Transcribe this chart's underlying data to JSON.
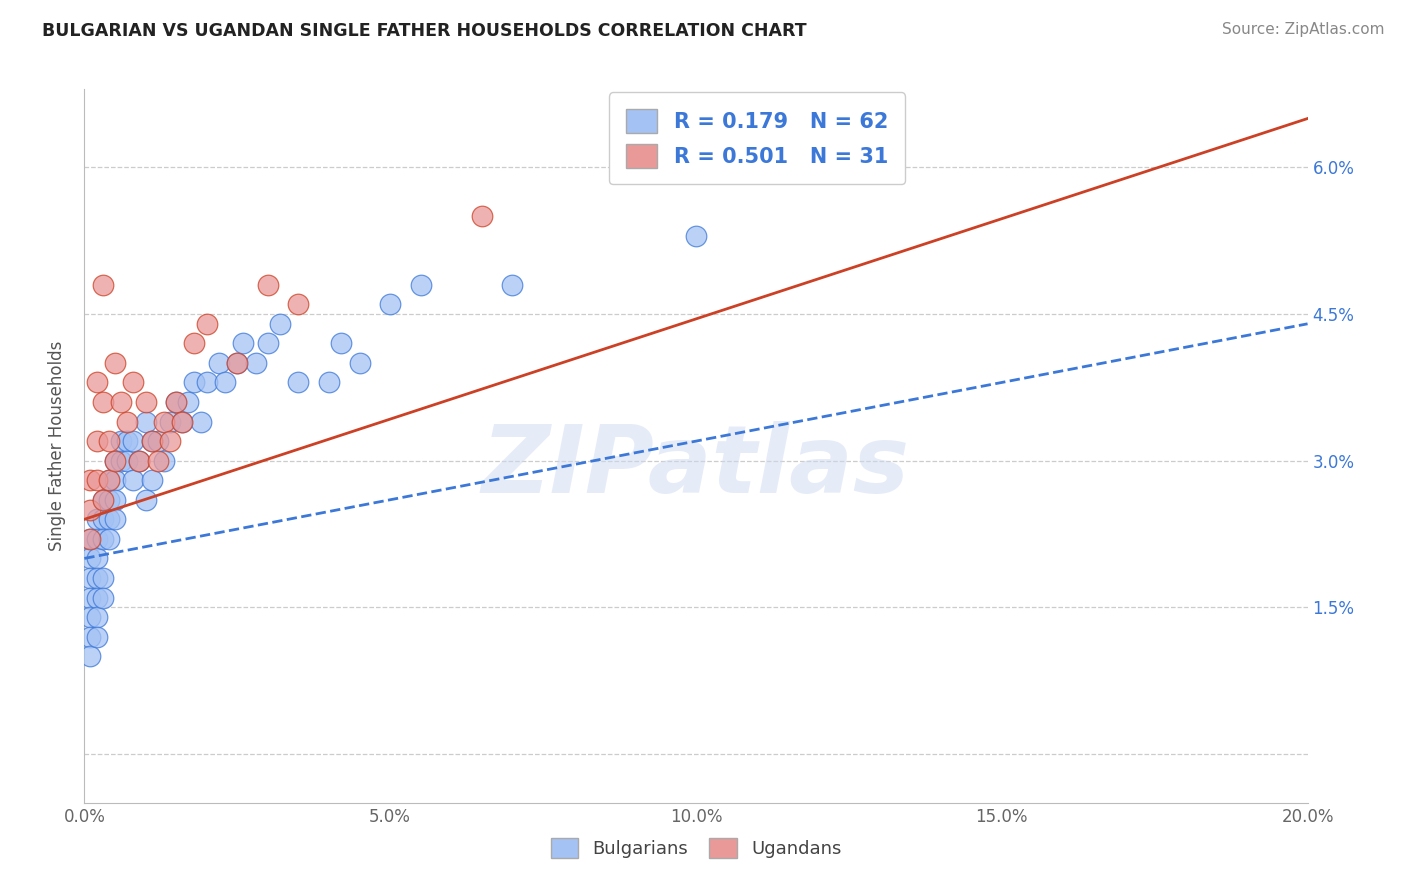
{
  "title": "BULGARIAN VS UGANDAN SINGLE FATHER HOUSEHOLDS CORRELATION CHART",
  "source": "Source: ZipAtlas.com",
  "ylabel": "Single Father Households",
  "watermark": "ZIPatlas",
  "xlim": [
    0.0,
    0.2
  ],
  "ylim": [
    -0.005,
    0.068
  ],
  "xticks": [
    0.0,
    0.05,
    0.1,
    0.15,
    0.2
  ],
  "xtick_labels": [
    "0.0%",
    "5.0%",
    "10.0%",
    "15.0%",
    "20.0%"
  ],
  "yticks": [
    0.0,
    0.015,
    0.03,
    0.045,
    0.06
  ],
  "ytick_labels": [
    "",
    "1.5%",
    "3.0%",
    "4.5%",
    "6.0%"
  ],
  "blue_R": 0.179,
  "blue_N": 62,
  "pink_R": 0.501,
  "pink_N": 31,
  "blue_color": "#a4c2f4",
  "pink_color": "#ea9999",
  "blue_line_color": "#3c78d8",
  "pink_line_color": "#cc4125",
  "legend_label_blue": "Bulgarians",
  "legend_label_pink": "Ugandans",
  "blue_x": [
    0.001,
    0.001,
    0.001,
    0.001,
    0.001,
    0.001,
    0.001,
    0.002,
    0.002,
    0.002,
    0.002,
    0.002,
    0.002,
    0.002,
    0.003,
    0.003,
    0.003,
    0.003,
    0.003,
    0.004,
    0.004,
    0.004,
    0.004,
    0.005,
    0.005,
    0.005,
    0.005,
    0.006,
    0.006,
    0.007,
    0.007,
    0.008,
    0.008,
    0.009,
    0.01,
    0.01,
    0.011,
    0.011,
    0.012,
    0.013,
    0.014,
    0.015,
    0.016,
    0.017,
    0.018,
    0.019,
    0.02,
    0.022,
    0.023,
    0.025,
    0.026,
    0.028,
    0.03,
    0.032,
    0.035,
    0.04,
    0.042,
    0.045,
    0.05,
    0.055,
    0.07,
    0.1
  ],
  "blue_y": [
    0.022,
    0.02,
    0.018,
    0.016,
    0.014,
    0.012,
    0.01,
    0.024,
    0.022,
    0.02,
    0.018,
    0.016,
    0.014,
    0.012,
    0.026,
    0.024,
    0.022,
    0.018,
    0.016,
    0.028,
    0.026,
    0.024,
    0.022,
    0.03,
    0.028,
    0.026,
    0.024,
    0.032,
    0.03,
    0.032,
    0.03,
    0.032,
    0.028,
    0.03,
    0.034,
    0.026,
    0.032,
    0.028,
    0.032,
    0.03,
    0.034,
    0.036,
    0.034,
    0.036,
    0.038,
    0.034,
    0.038,
    0.04,
    0.038,
    0.04,
    0.042,
    0.04,
    0.042,
    0.044,
    0.038,
    0.038,
    0.042,
    0.04,
    0.046,
    0.048,
    0.048,
    0.053
  ],
  "pink_x": [
    0.001,
    0.001,
    0.001,
    0.002,
    0.002,
    0.002,
    0.003,
    0.003,
    0.003,
    0.004,
    0.004,
    0.005,
    0.005,
    0.006,
    0.007,
    0.008,
    0.009,
    0.01,
    0.011,
    0.012,
    0.013,
    0.014,
    0.015,
    0.016,
    0.018,
    0.02,
    0.025,
    0.03,
    0.035,
    0.065,
    0.1
  ],
  "pink_y": [
    0.028,
    0.025,
    0.022,
    0.038,
    0.032,
    0.028,
    0.048,
    0.036,
    0.026,
    0.032,
    0.028,
    0.04,
    0.03,
    0.036,
    0.034,
    0.038,
    0.03,
    0.036,
    0.032,
    0.03,
    0.034,
    0.032,
    0.036,
    0.034,
    0.042,
    0.044,
    0.04,
    0.048,
    0.046,
    0.055,
    0.06
  ],
  "blue_trend_x": [
    0.0,
    0.2
  ],
  "blue_trend_y": [
    0.02,
    0.044
  ],
  "pink_trend_x": [
    0.0,
    0.2
  ],
  "pink_trend_y": [
    0.024,
    0.065
  ]
}
